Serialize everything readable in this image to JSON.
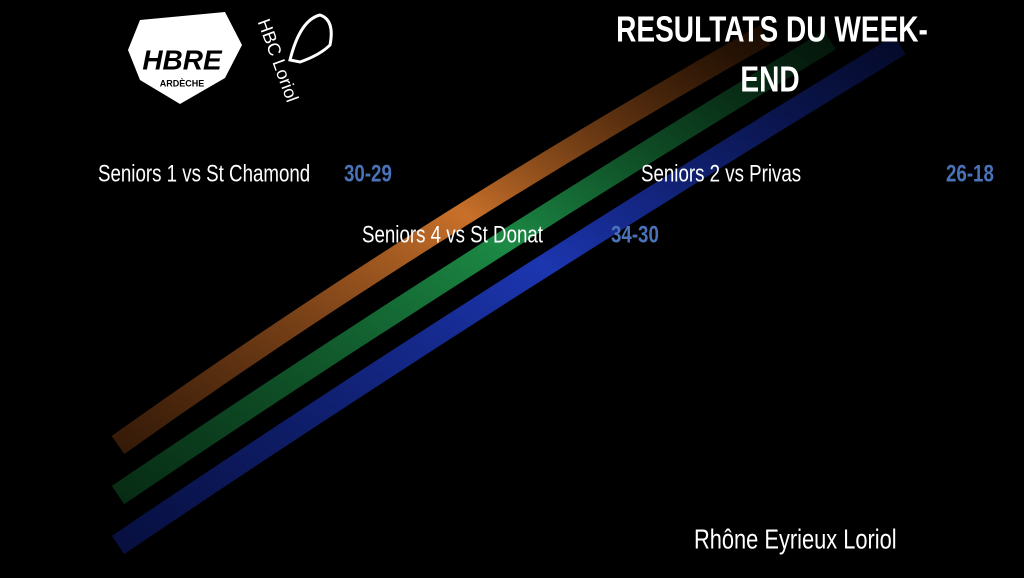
{
  "logos": {
    "hbre": {
      "name": "HBRE",
      "region": "ARDÈCHE"
    },
    "loriol": {
      "name": "HBC Loriol"
    }
  },
  "title_lines": [
    "RESULTATS DU WEEK-",
    "END"
  ],
  "results": [
    {
      "match": "Seniors 1 vs St Chamond",
      "score": "30-29"
    },
    {
      "match": "Seniors 2 vs Privas",
      "score": "26-18"
    },
    {
      "match": "Seniors 4 vs St Donat",
      "score": "34-30"
    }
  ],
  "footer": "Rhône Eyrieux Loriol"
}
